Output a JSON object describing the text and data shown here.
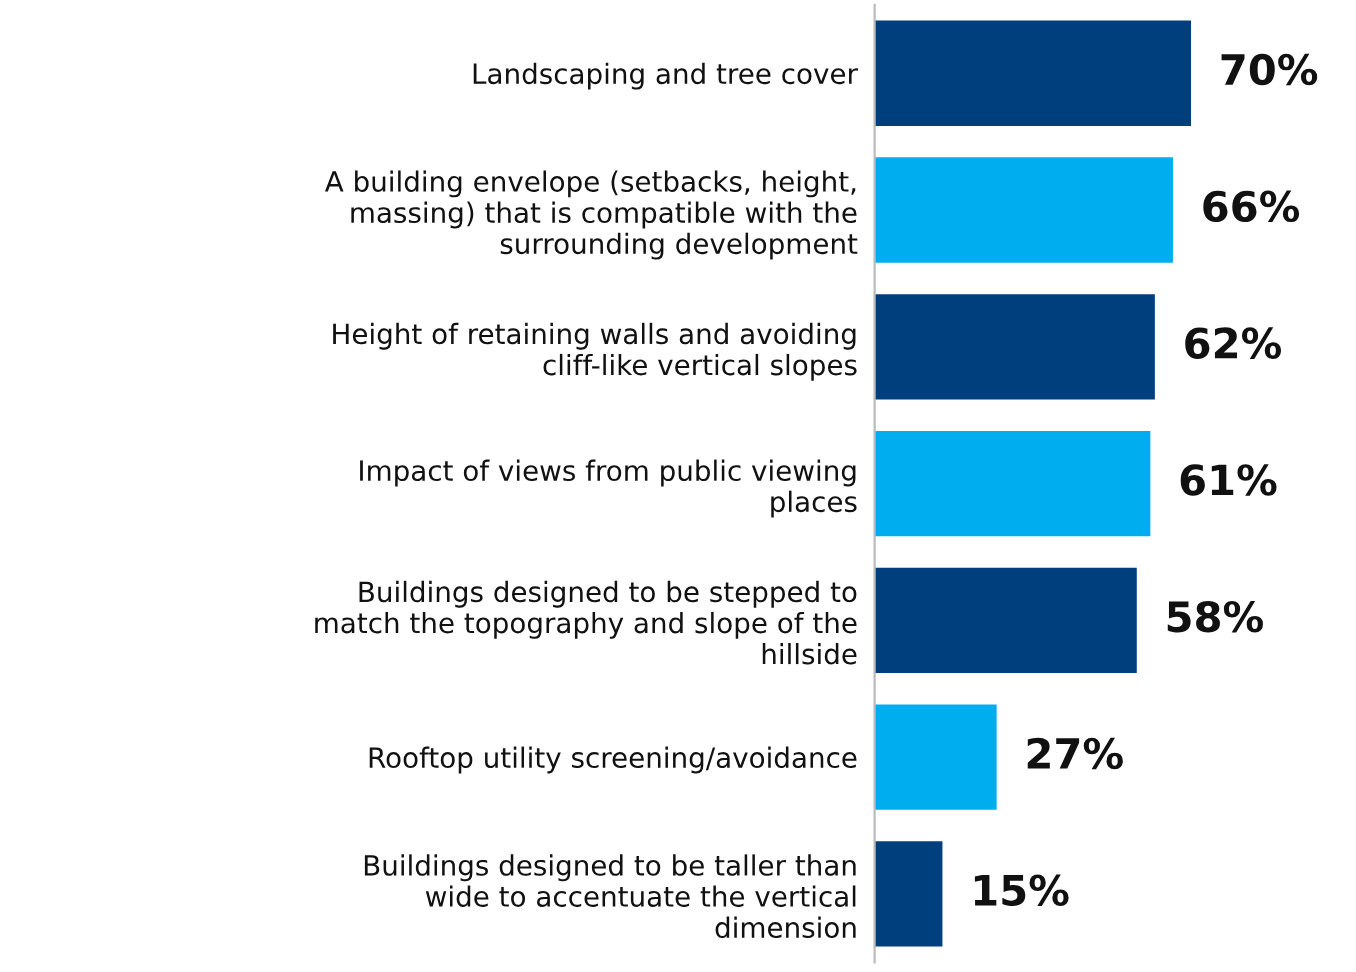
{
  "chart_data": {
    "type": "bar",
    "orientation": "horizontal",
    "categories": [
      "Landscaping and tree cover",
      "A building envelope (setbacks, height,\nmassing) that is compatible with the\nsurrounding development",
      "Height of retaining walls and avoiding\ncliff-like vertical slopes",
      "Impact of views from public viewing\nplaces",
      "Buildings designed to be stepped to\nmatch the topography and slope of the\nhillside",
      "Rooftop utility screening/avoidance",
      "Buildings designed to be taller than\nwide to accentuate the vertical\ndimension"
    ],
    "values": [
      70,
      66,
      62,
      61,
      58,
      27,
      15
    ],
    "colors": [
      "#003f7d",
      "#00aeef",
      "#003f7d",
      "#00aeef",
      "#003f7d",
      "#00aeef",
      "#003f7d"
    ],
    "value_labels": [
      "70%",
      "66%",
      "62%",
      "61%",
      "58%",
      "27%",
      "15%"
    ],
    "grid": false,
    "legend": false,
    "tick_labels": "y"
  }
}
